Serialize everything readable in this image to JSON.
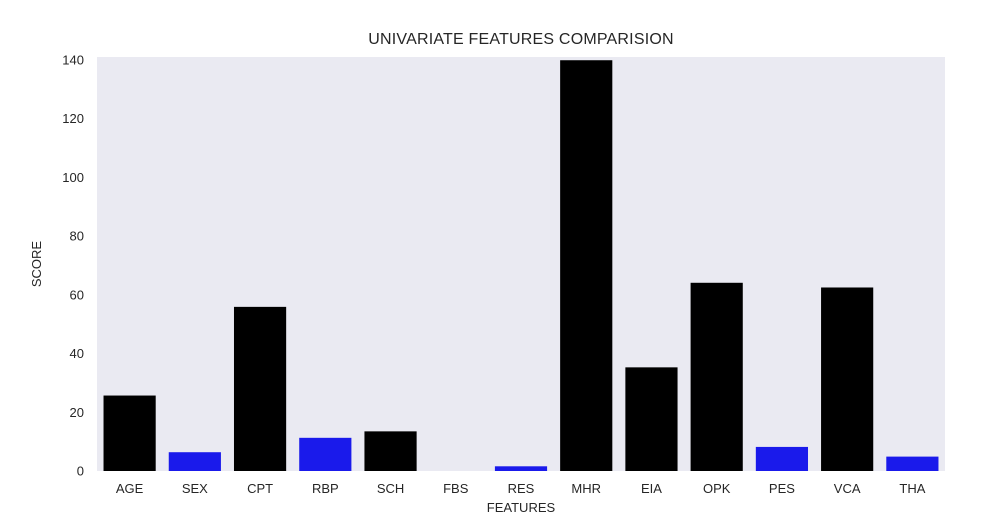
{
  "chart_data": {
    "type": "bar",
    "title": "UNIVARIATE FEATURES COMPARISION",
    "xlabel": "FEATURES",
    "ylabel": "SCORE",
    "ylim": [
      0,
      141
    ],
    "yticks": [
      0,
      20,
      40,
      60,
      80,
      100,
      120,
      140
    ],
    "grid": false,
    "legend": "none",
    "categories": [
      "AGE",
      "SEX",
      "CPT",
      "RBP",
      "SCH",
      "FBS",
      "RES",
      "MHR",
      "EIA",
      "OPK",
      "PES",
      "VCA",
      "THA"
    ],
    "values": [
      25.7,
      6.4,
      55.9,
      11.3,
      13.5,
      0.0,
      1.6,
      139.9,
      35.3,
      64.1,
      8.2,
      62.5,
      4.9
    ],
    "bar_colors": [
      "#000000",
      "#1a1aeb",
      "#000000",
      "#1a1aeb",
      "#000000",
      "#1a1aeb",
      "#1a1aeb",
      "#000000",
      "#000000",
      "#000000",
      "#1a1aeb",
      "#000000",
      "#1a1aeb"
    ],
    "plot_background": "#eaeaf2"
  }
}
